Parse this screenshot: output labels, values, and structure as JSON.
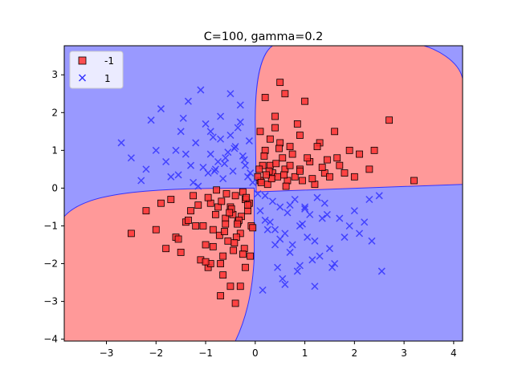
{
  "chart_data": {
    "type": "scatter",
    "title": "C=100, gamma=0.2",
    "xlabel": "",
    "ylabel": "",
    "xlim": [
      -3.85,
      4.18
    ],
    "ylim": [
      -4.05,
      3.77
    ],
    "xticks": [
      -3,
      -2,
      -1,
      0,
      1,
      2,
      3,
      4
    ],
    "yticks": [
      -4,
      -3,
      -2,
      -1,
      0,
      1,
      2,
      3
    ],
    "grid": false,
    "legend_position": "top-left",
    "decision_regions": {
      "positive_class_region_color": "#9999ff",
      "negative_class_region_color": "#ff9999"
    },
    "series": [
      {
        "name": "-1",
        "marker": "square",
        "color": "#ff3333",
        "edge_color": "#000000",
        "x": [
          0.5,
          1.0,
          0.2,
          1.6,
          0.9,
          1.3,
          0.4,
          0.7,
          1.9,
          2.1,
          2.4,
          0.3,
          0.6,
          1.1,
          1.4,
          0.8,
          0.1,
          0.35,
          0.55,
          1.7,
          2.7,
          3.2,
          1.2,
          0.45,
          0.25,
          0.9,
          1.5,
          0.65,
          0.15,
          0.05,
          0.3,
          0.75,
          1.05,
          1.25,
          0.85,
          0.4,
          0.6,
          0.2,
          0.95,
          1.8,
          2.3,
          2.0,
          1.65,
          0.1,
          0.5,
          0.7,
          0.12,
          0.28,
          0.42,
          0.58,
          0.9,
          1.15,
          1.35,
          1.45,
          0.33,
          0.62,
          0.18,
          0.08,
          0.22,
          0.48,
          -0.2,
          -0.5,
          -0.8,
          -1.2,
          -1.6,
          -2.0,
          -0.4,
          -0.9,
          -1.3,
          -0.6,
          -0.3,
          -1.0,
          -1.5,
          -1.8,
          -2.5,
          -0.7,
          -1.1,
          -0.25,
          -0.15,
          -0.55,
          -0.85,
          -1.4,
          -1.7,
          -0.45,
          -0.35,
          -0.65,
          -0.95,
          -1.05,
          -0.75,
          -0.12,
          -0.08,
          -0.22,
          -0.38,
          -0.58,
          -0.68,
          -0.48,
          -0.28,
          -1.25,
          -1.9,
          -2.2,
          -0.5,
          -0.65,
          -0.9,
          -0.4,
          -0.3,
          -0.2,
          -0.1,
          -0.6,
          -1.35,
          -1.55,
          -0.72,
          -0.42,
          -0.18,
          -0.85,
          -1.15,
          -0.52,
          -0.33,
          -0.05,
          -0.62,
          -0.78,
          -0.95,
          -0.44,
          -0.25,
          -1.0,
          -0.7,
          -0.36,
          -0.15
        ],
        "y": [
          2.8,
          2.3,
          2.4,
          1.5,
          1.4,
          1.2,
          1.6,
          1.1,
          1.0,
          0.9,
          1.0,
          0.6,
          0.5,
          0.7,
          0.4,
          0.3,
          0.2,
          0.4,
          0.8,
          0.6,
          1.8,
          0.2,
          0.1,
          0.3,
          0.1,
          0.5,
          0.3,
          0.2,
          0.6,
          0.3,
          1.3,
          0.9,
          0.8,
          1.1,
          1.7,
          1.9,
          2.5,
          1.0,
          0.2,
          0.4,
          0.5,
          0.3,
          0.8,
          1.5,
          1.2,
          0.6,
          0.15,
          0.45,
          0.65,
          0.35,
          0.45,
          0.25,
          0.55,
          0.75,
          0.25,
          0.05,
          0.85,
          0.5,
          0.35,
          1.05,
          -0.3,
          -0.5,
          -0.7,
          -1.0,
          -1.3,
          -1.1,
          -0.2,
          -0.4,
          -0.6,
          -0.8,
          -1.2,
          -1.5,
          -1.7,
          -1.6,
          -1.2,
          -2.0,
          -1.9,
          -0.1,
          -0.6,
          -1.4,
          -1.1,
          -0.9,
          -0.3,
          -0.7,
          -0.9,
          -1.8,
          -2.1,
          -1.0,
          -0.5,
          -0.4,
          -1.0,
          -1.6,
          -1.3,
          -0.15,
          -0.35,
          -0.55,
          -0.75,
          -0.2,
          -0.4,
          -0.6,
          -2.6,
          -2.3,
          -2.0,
          -3.05,
          -2.6,
          -2.1,
          -1.8,
          -0.95,
          -0.85,
          -1.35,
          -1.25,
          -1.45,
          -0.25,
          -1.55,
          -0.45,
          -0.65,
          -0.85,
          -1.05,
          -1.15,
          -0.05,
          -0.25,
          -1.65,
          -1.75,
          -1.95,
          -2.85,
          -0.95,
          -0.45
        ]
      },
      {
        "name": "1",
        "marker": "x",
        "color": "#3333ff",
        "x": [
          -2.7,
          -2.5,
          -2.2,
          -2.0,
          -1.8,
          -1.5,
          -1.3,
          -1.1,
          -0.9,
          -0.7,
          -0.5,
          -0.3,
          -0.1,
          -1.7,
          -1.4,
          -1.2,
          -1.0,
          -0.8,
          -0.6,
          -0.4,
          -0.2,
          -2.3,
          -1.9,
          -1.6,
          -0.95,
          -0.75,
          -0.55,
          -0.35,
          -0.15,
          -1.25,
          -1.05,
          -0.85,
          -0.65,
          -0.45,
          -0.25,
          -0.05,
          -2.1,
          -1.35,
          -0.9,
          -0.7,
          -0.5,
          -0.3,
          -1.55,
          -1.15,
          -0.62,
          -0.42,
          -0.22,
          -1.45,
          -0.82,
          -0.12,
          0.2,
          0.5,
          0.8,
          1.1,
          1.4,
          1.7,
          2.0,
          2.3,
          2.5,
          0.3,
          0.6,
          0.9,
          1.2,
          1.5,
          1.8,
          2.1,
          0.1,
          0.4,
          0.7,
          1.0,
          1.3,
          1.6,
          1.9,
          2.2,
          0.25,
          0.55,
          0.85,
          1.15,
          1.45,
          0.15,
          0.45,
          0.75,
          1.05,
          1.35,
          0.35,
          0.65,
          0.95,
          1.25,
          0.05,
          0.5,
          0.9,
          1.2,
          0.7,
          0.4,
          0.2,
          1.55,
          2.35,
          2.55,
          0.6,
          1.0
        ],
        "y": [
          1.2,
          0.8,
          0.5,
          1.0,
          0.7,
          1.5,
          0.6,
          2.6,
          0.9,
          1.9,
          1.4,
          2.2,
          0.4,
          0.3,
          0.9,
          1.2,
          1.7,
          0.5,
          0.8,
          1.1,
          0.6,
          0.2,
          2.1,
          1.0,
          0.4,
          0.7,
          0.95,
          1.6,
          0.3,
          0.15,
          0.55,
          1.35,
          0.25,
          0.45,
          0.85,
          0.15,
          1.8,
          2.3,
          1.5,
          1.3,
          2.5,
          1.75,
          0.35,
          0.05,
          0.65,
          1.05,
          0.75,
          1.85,
          0.45,
          1.25,
          -0.2,
          -0.5,
          -0.3,
          -0.7,
          -0.4,
          -0.8,
          -0.6,
          -0.3,
          -0.2,
          -0.9,
          -1.2,
          -1.0,
          -1.4,
          -1.6,
          -1.3,
          -1.2,
          -0.6,
          -1.5,
          -1.7,
          -0.5,
          -1.8,
          -2.0,
          -1.0,
          -0.9,
          -1.1,
          -2.4,
          -2.2,
          -1.9,
          -0.7,
          -2.7,
          -2.1,
          -1.5,
          -1.3,
          -0.8,
          -0.35,
          -0.65,
          -0.95,
          -0.25,
          -0.15,
          -1.35,
          -2.05,
          -2.6,
          -0.45,
          -1.1,
          -0.85,
          -2.1,
          -1.4,
          -2.2,
          -2.55,
          -0.55
        ]
      }
    ]
  }
}
